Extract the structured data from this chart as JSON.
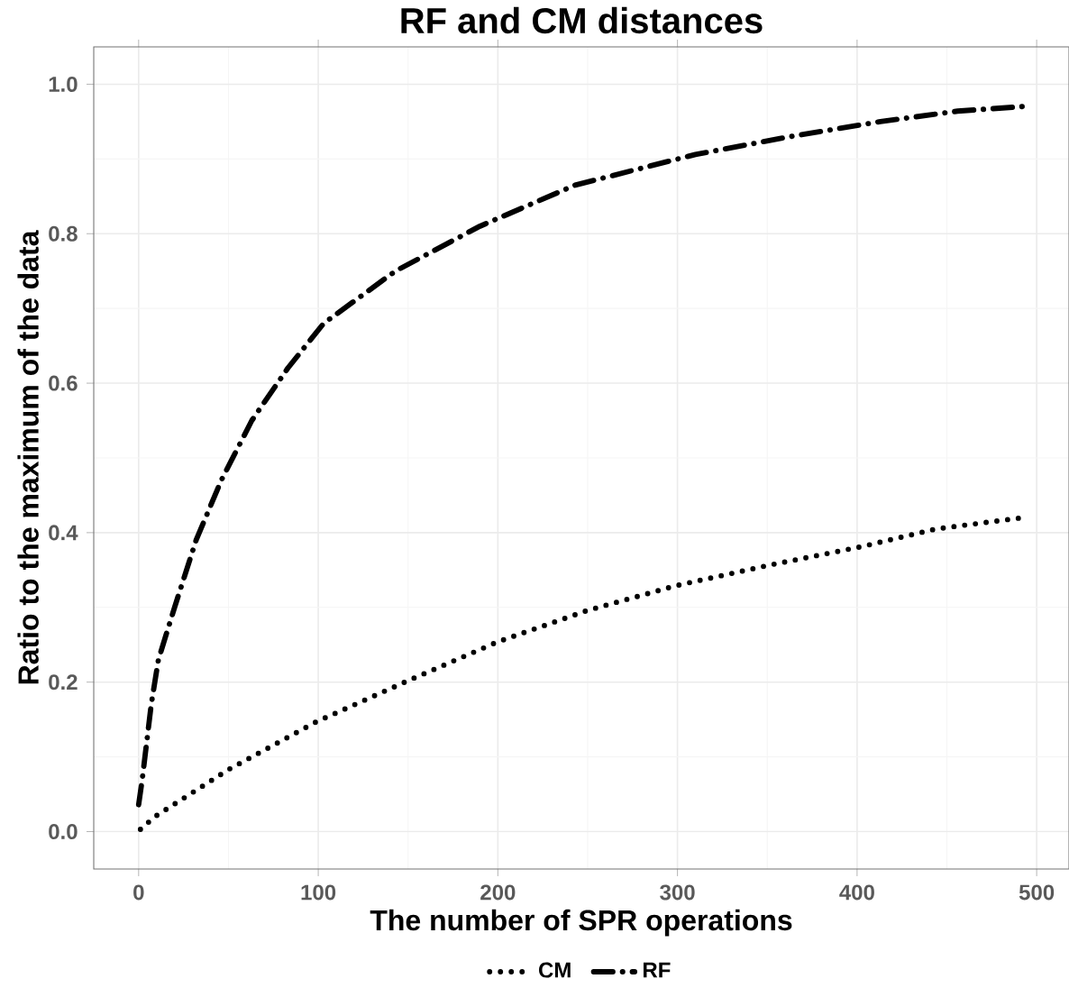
{
  "chart_data": {
    "type": "line",
    "title": "RF and CM distances",
    "xlabel": "The number of  SPR  operations",
    "ylabel": "Ratio to the maximum of the data",
    "xlim": [
      -25,
      518
    ],
    "ylim": [
      -0.05,
      1.05
    ],
    "xticks": [
      0,
      100,
      200,
      300,
      400,
      500
    ],
    "yticks": [
      {
        "value": 0,
        "label": "0.0"
      },
      {
        "value": 0.2,
        "label": "0.2"
      },
      {
        "value": 0.4,
        "label": "0.4"
      },
      {
        "value": 0.6,
        "label": "0.6"
      },
      {
        "value": 0.8,
        "label": "0.8"
      },
      {
        "value": 1.0,
        "label": "1.0"
      }
    ],
    "grid": true,
    "legend": "bottom",
    "marker": "none",
    "series": [
      {
        "name": "CM",
        "color": "#000000",
        "line_style": "dotted",
        "x": [
          1,
          9,
          50,
          99,
          151,
          200,
          250,
          299,
          352,
          402,
          444,
          492
        ],
        "values": [
          0.003,
          0.02,
          0.083,
          0.147,
          0.203,
          0.254,
          0.296,
          0.329,
          0.357,
          0.381,
          0.405,
          0.42
        ]
      },
      {
        "name": "RF",
        "color": "#000000",
        "line_style": "dashdot",
        "x": [
          0,
          2,
          7,
          11,
          20,
          32,
          46,
          63,
          83,
          103,
          143,
          190,
          243,
          310,
          363,
          413,
          456,
          497
        ],
        "values": [
          0.036,
          0.07,
          0.17,
          0.23,
          0.3,
          0.39,
          0.47,
          0.55,
          0.62,
          0.68,
          0.75,
          0.81,
          0.865,
          0.906,
          0.93,
          0.95,
          0.964,
          0.971
        ]
      }
    ]
  }
}
